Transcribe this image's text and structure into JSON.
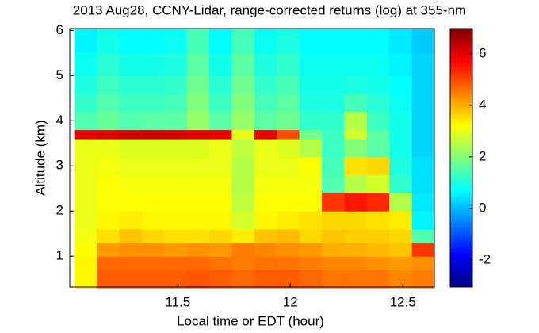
{
  "chart_data": {
    "type": "heatmap",
    "title": "2013 Aug28, CCNY-Lidar, range-corrected returns (log) at 355-nm",
    "xlabel": "Local time or EDT (hour)",
    "ylabel": "Altitude (km)",
    "colormap": "jet",
    "x_edges": [
      11.04,
      11.14,
      11.24,
      11.34,
      11.44,
      11.54,
      11.64,
      11.74,
      11.84,
      11.94,
      12.04,
      12.14,
      12.24,
      12.34,
      12.44,
      12.54,
      12.64
    ],
    "y_edges": [
      0.3,
      0.7,
      1.0,
      1.3,
      1.6,
      2.0,
      2.4,
      2.8,
      3.2,
      3.6,
      3.8,
      4.2,
      4.6,
      5.0,
      5.5,
      6.04
    ],
    "z": [
      [
        3.3,
        4.8,
        4.8,
        4.8,
        4.8,
        4.9,
        4.8,
        4.7,
        4.8,
        4.8,
        4.7,
        4.6,
        4.6,
        4.6,
        4.4,
        4.5
      ],
      [
        3.3,
        4.7,
        4.7,
        4.7,
        4.7,
        4.7,
        4.6,
        4.5,
        4.6,
        4.6,
        4.5,
        4.4,
        4.4,
        4.3,
        4.2,
        4.3
      ],
      [
        3.2,
        4.2,
        4.3,
        4.3,
        4.2,
        4.3,
        4.2,
        4.5,
        4.4,
        4.3,
        4.2,
        4.0,
        4.0,
        3.9,
        3.8,
        5.2
      ],
      [
        3.1,
        3.5,
        3.8,
        3.6,
        3.5,
        3.5,
        3.6,
        3.4,
        3.8,
        3.9,
        3.6,
        3.8,
        3.7,
        3.7,
        3.6,
        1.5
      ],
      [
        3.0,
        3.3,
        3.4,
        3.3,
        3.3,
        3.3,
        3.3,
        2.8,
        3.3,
        3.4,
        3.5,
        3.6,
        3.6,
        3.5,
        3.4,
        0.6
      ],
      [
        3.0,
        3.2,
        3.2,
        3.2,
        3.2,
        3.2,
        3.2,
        2.6,
        3.2,
        3.2,
        3.2,
        5.2,
        5.5,
        5.3,
        2.5,
        0.5
      ],
      [
        3.0,
        3.2,
        3.1,
        3.1,
        3.1,
        3.1,
        3.1,
        2.5,
        3.1,
        3.1,
        3.1,
        1.5,
        2.5,
        2.8,
        1.2,
        0.4
      ],
      [
        3.0,
        3.1,
        3.0,
        3.0,
        3.0,
        3.0,
        3.0,
        2.5,
        3.0,
        3.0,
        3.2,
        1.4,
        3.5,
        3.6,
        1.0,
        0.4
      ],
      [
        3.0,
        3.0,
        2.9,
        2.9,
        2.9,
        2.9,
        3.0,
        2.6,
        3.0,
        2.9,
        2.5,
        1.3,
        2.0,
        1.6,
        0.9,
        0.3
      ],
      [
        6.0,
        6.1,
        6.2,
        6.3,
        6.2,
        6.1,
        6.0,
        3.0,
        6.0,
        5.0,
        1.8,
        1.3,
        2.8,
        1.6,
        0.9,
        0.3
      ],
      [
        1.5,
        1.7,
        1.5,
        1.6,
        1.6,
        2.2,
        1.6,
        2.2,
        1.6,
        1.8,
        1.2,
        1.2,
        2.5,
        1.3,
        0.9,
        0.3
      ],
      [
        1.2,
        1.5,
        1.3,
        1.3,
        1.4,
        2.0,
        1.3,
        2.0,
        1.4,
        1.6,
        1.0,
        1.0,
        1.4,
        1.1,
        0.8,
        0.3
      ],
      [
        1.0,
        1.3,
        1.1,
        1.1,
        1.2,
        1.8,
        1.1,
        1.8,
        1.2,
        1.4,
        0.9,
        0.9,
        1.0,
        0.9,
        0.7,
        0.3
      ],
      [
        0.8,
        1.1,
        0.9,
        0.9,
        1.0,
        1.6,
        0.9,
        1.6,
        1.0,
        1.2,
        0.8,
        0.8,
        0.8,
        0.8,
        0.6,
        0.3
      ],
      [
        0.6,
        0.9,
        0.7,
        0.7,
        0.8,
        1.4,
        0.7,
        1.4,
        0.8,
        1.0,
        0.7,
        0.7,
        0.7,
        0.7,
        0.5,
        0.2
      ]
    ],
    "xlim": [
      11.02,
      12.64
    ],
    "xticks": [
      11.5,
      12,
      12.5
    ],
    "ylim": [
      0.32,
      6.04
    ],
    "yticks": [
      1,
      2,
      3,
      4,
      5,
      6
    ],
    "colorbar": {
      "lim": [
        -3.05,
        6.98
      ],
      "ticks": [
        -2,
        0,
        2,
        4,
        6
      ]
    }
  }
}
